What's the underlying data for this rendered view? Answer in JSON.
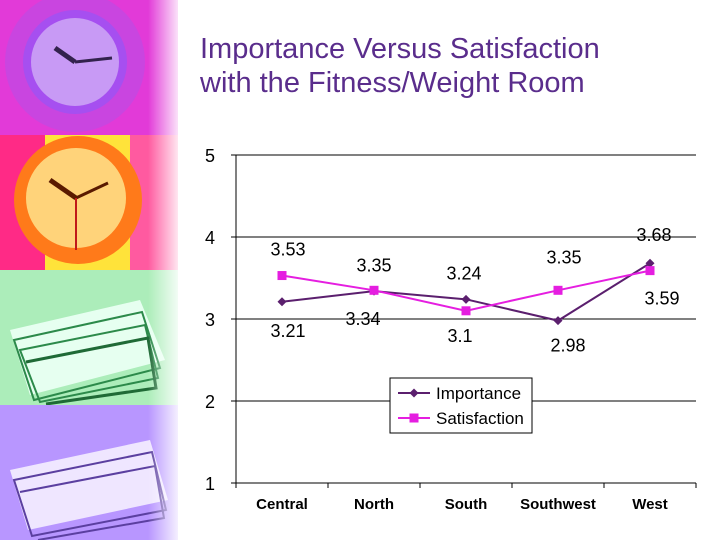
{
  "slide": {
    "title_line1": "Importance Versus Satisfaction",
    "title_line2": "with the Fitness/Weight Room"
  },
  "sidebar_images": [
    "purple-clock",
    "orange-clock",
    "green-papers",
    "lavender-papers"
  ],
  "chart_data": {
    "type": "line",
    "categories": [
      "Central",
      "North",
      "South",
      "Southwest",
      "West"
    ],
    "series": [
      {
        "name": "Importance",
        "values": [
          3.21,
          3.34,
          3.24,
          2.98,
          3.68
        ],
        "color": "#5b1f6e",
        "marker": "diamond"
      },
      {
        "name": "Satisfaction",
        "values": [
          3.53,
          3.35,
          3.1,
          3.35,
          3.59
        ],
        "color": "#e51ee0",
        "marker": "square"
      }
    ],
    "data_labels": [
      {
        "series": "Satisfaction",
        "category": "Central",
        "text": "3.53"
      },
      {
        "series": "Importance",
        "category": "Central",
        "text": "3.21"
      },
      {
        "series": "Satisfaction",
        "category": "North",
        "text": "3.35"
      },
      {
        "series": "Importance",
        "category": "North",
        "text": "3.34"
      },
      {
        "series": "Importance",
        "category": "South",
        "text": "3.24"
      },
      {
        "series": "Satisfaction",
        "category": "South",
        "text": "3.1"
      },
      {
        "series": "Satisfaction",
        "category": "Southwest",
        "text": "3.35"
      },
      {
        "series": "Importance",
        "category": "Southwest",
        "text": "2.98"
      },
      {
        "series": "Importance",
        "category": "West",
        "text": "3.68"
      },
      {
        "series": "Satisfaction",
        "category": "West",
        "text": "3.59"
      }
    ],
    "y_ticks": [
      "1",
      "2",
      "3",
      "4",
      "5"
    ],
    "ylim": [
      1,
      5
    ],
    "grid": true,
    "legend": "center"
  }
}
